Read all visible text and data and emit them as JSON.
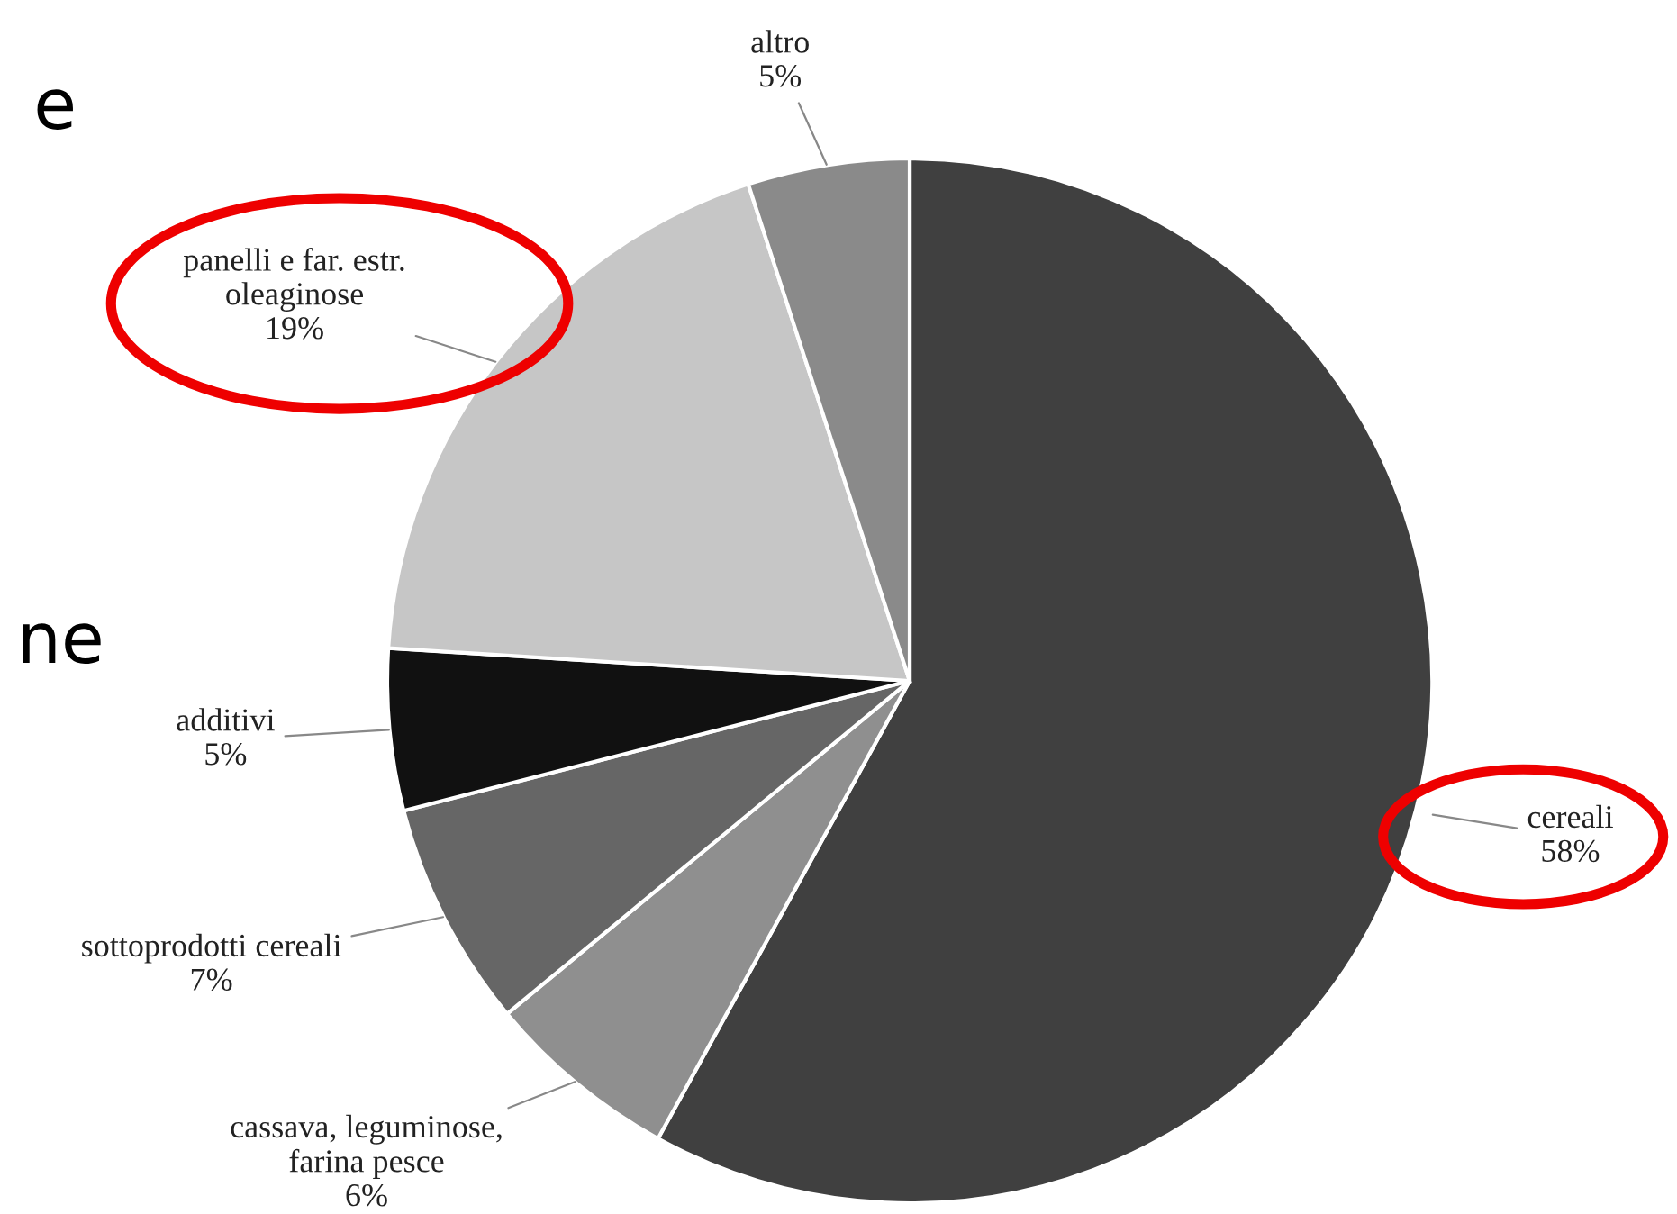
{
  "chart_data": {
    "type": "pie",
    "categories": [
      "cereali",
      "cassava, leguminose,\nfarina pesce",
      "sottoprodotti cereali",
      "additivi",
      "panelli e far. estr.\noleaginose",
      "altro"
    ],
    "values": [
      58,
      6,
      7,
      5,
      19,
      5
    ],
    "value_labels": [
      "58%",
      "6%",
      "7%",
      "5%",
      "19%",
      "5%"
    ],
    "colors": [
      "#404040",
      "#8f8f8f",
      "#666666",
      "#111111",
      "#c6c6c6",
      "#8a8a8a"
    ],
    "annotations": [
      "e",
      "ne"
    ],
    "legend": false
  }
}
